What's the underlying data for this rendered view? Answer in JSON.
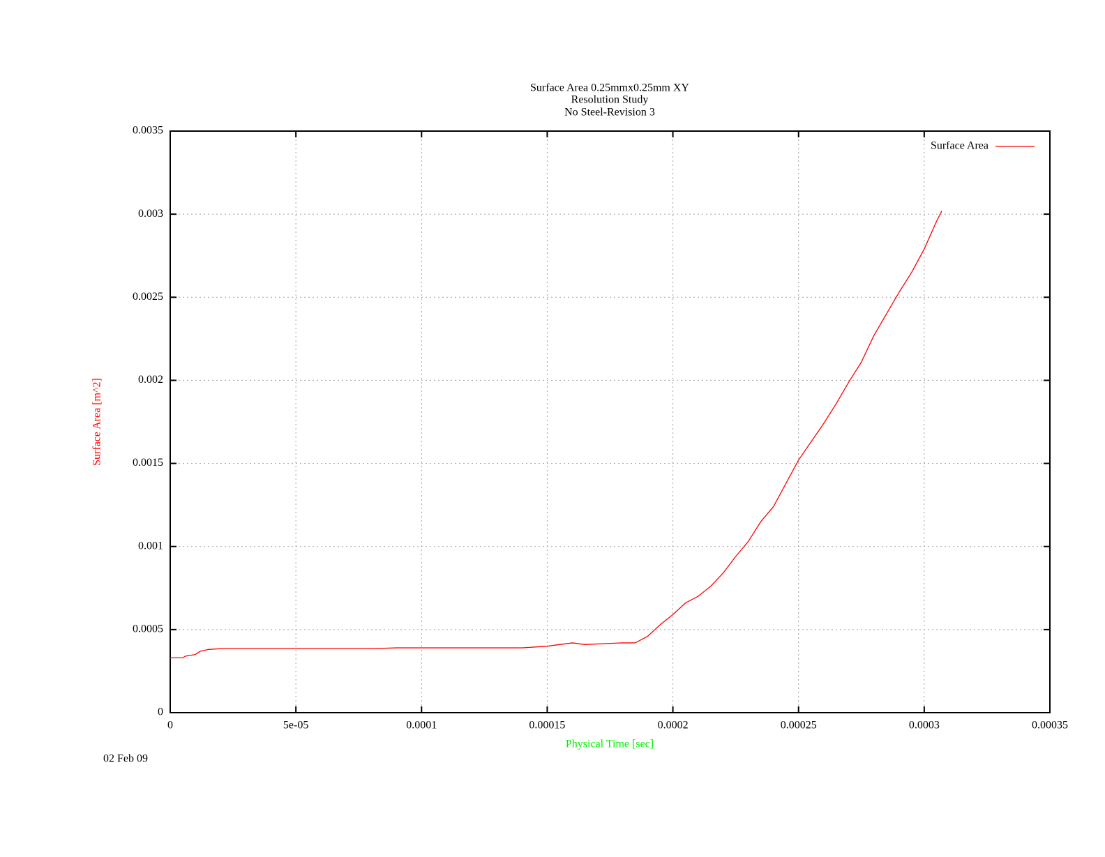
{
  "chart_data": {
    "type": "line",
    "title": [
      "Surface Area 0.25mmx0.25mm XY",
      "Resolution Study",
      "No Steel-Revision 3"
    ],
    "xlabel": "Physical Time [sec]",
    "ylabel": "Surface Area [m^2]",
    "xlabel_color": "#00ee00",
    "ylabel_color": "#ff0000",
    "date": "02 Feb 09",
    "grid": true,
    "legend": "upper right",
    "xlim": [
      0,
      0.00035
    ],
    "ylim": [
      0,
      0.0035
    ],
    "xticks": [
      0,
      {
        "value": 5e-05,
        "label": "5e-05"
      },
      0.0001,
      0.00015,
      0.0002,
      0.00025,
      0.0003,
      0.00035
    ],
    "yticks": [
      0,
      0.0005,
      0.001,
      0.0015,
      0.002,
      0.0025,
      0.003,
      0.0035
    ],
    "x": [
      0,
      5e-06,
      6e-06,
      1e-05,
      1.2e-05,
      1.5e-05,
      2e-05,
      5e-05,
      8e-05,
      9e-05,
      0.00012,
      0.00014,
      0.00015,
      0.00016,
      0.000165,
      0.00018,
      0.000185,
      0.00019,
      0.000195,
      0.0002,
      0.000205,
      0.00021,
      0.000215,
      0.00022,
      0.000225,
      0.00023,
      0.000235,
      0.00024,
      0.000245,
      0.00025,
      0.000255,
      0.00026,
      0.000265,
      0.00027,
      0.000275,
      0.00028,
      0.000285,
      0.00029,
      0.000295,
      0.0003,
      0.000305,
      0.000307
    ],
    "series": [
      {
        "name": "Surface Area",
        "color": "#ff0000",
        "values": [
          0.00033,
          0.00033,
          0.00034,
          0.00035,
          0.00037,
          0.00038,
          0.000385,
          0.000385,
          0.000385,
          0.00039,
          0.00039,
          0.00039,
          0.0004,
          0.00042,
          0.00041,
          0.00042,
          0.00042,
          0.00046,
          0.00053,
          0.00059,
          0.00066,
          0.0007,
          0.00076,
          0.00084,
          0.00094,
          0.00103,
          0.00115,
          0.00124,
          0.00138,
          0.00152,
          0.00163,
          0.00174,
          0.00186,
          0.00199,
          0.00211,
          0.00227,
          0.0024,
          0.00253,
          0.00265,
          0.00279,
          0.00296,
          0.00302
        ]
      }
    ]
  }
}
